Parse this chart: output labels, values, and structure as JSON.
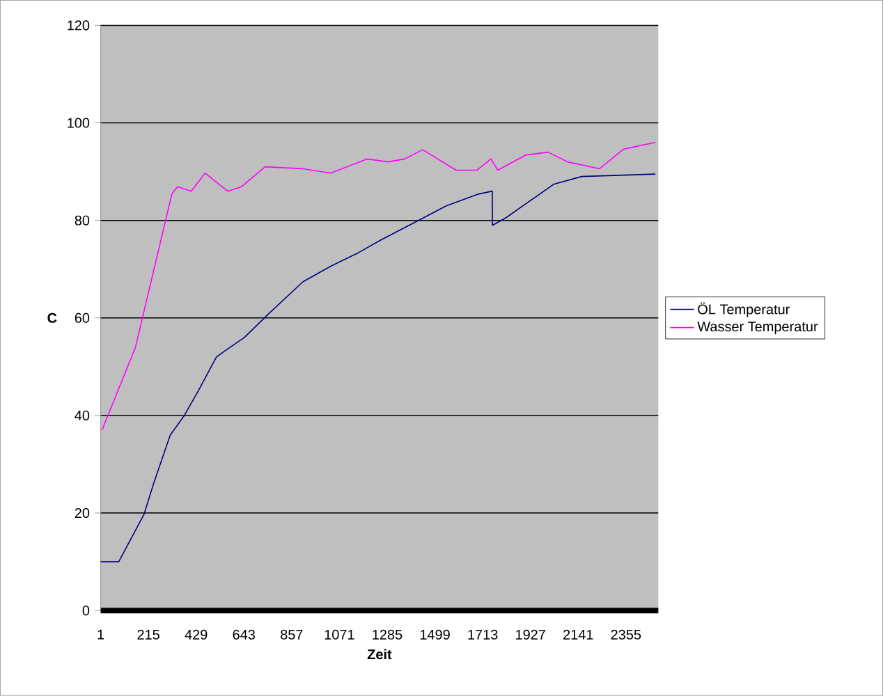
{
  "chart_data": {
    "type": "line",
    "xlabel": "Zeit",
    "ylabel": "C",
    "xlim": [
      1,
      2500
    ],
    "ylim": [
      0,
      120
    ],
    "xticks": [
      1,
      215,
      429,
      643,
      857,
      1071,
      1285,
      1499,
      1713,
      1927,
      2141,
      2355
    ],
    "yticks": [
      0,
      20,
      40,
      60,
      80,
      100,
      120
    ],
    "grid": "y",
    "legend": "right",
    "series": [
      {
        "name": "ÖL Temperatur",
        "color": "#000080",
        "x": [
          1,
          82,
          195,
          238,
          313,
          376,
          438,
          520,
          550,
          645,
          757,
          907,
          1032,
          1157,
          1257,
          1425,
          1550,
          1694,
          1756,
          1757,
          1819,
          1906,
          2031,
          2156,
          2487
        ],
        "values": [
          10,
          10,
          19.7,
          26,
          36,
          40,
          45,
          52,
          53,
          56,
          61,
          67.4,
          70.6,
          73.4,
          76,
          80,
          83,
          85.4,
          86,
          79,
          80.6,
          83.4,
          87.4,
          89,
          89.5
        ]
      },
      {
        "name": "Wasser Temperatur",
        "color": "#ff00ff",
        "x": [
          7,
          157,
          320,
          345,
          407,
          469,
          570,
          632,
          738,
          907,
          1032,
          1194,
          1288,
          1363,
          1444,
          1594,
          1687,
          1750,
          1781,
          1906,
          2006,
          2094,
          2237,
          2344,
          2487
        ],
        "values": [
          37,
          54,
          85.4,
          86.9,
          86,
          89.7,
          86,
          86.9,
          91,
          90.6,
          89.7,
          92.6,
          92,
          92.6,
          94.5,
          90.3,
          90.3,
          92.6,
          90.3,
          93.4,
          94,
          92,
          90.6,
          94.6,
          96
        ]
      }
    ]
  }
}
